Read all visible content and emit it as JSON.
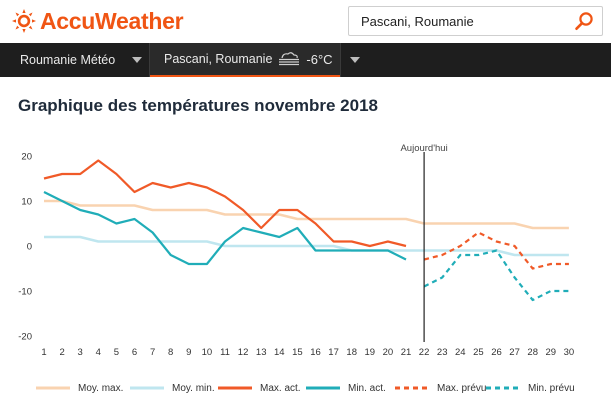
{
  "header": {
    "logo_text": "AccuWeather",
    "search": {
      "value": "Pascani, Roumanie",
      "placeholder": ""
    }
  },
  "nav": {
    "items": [
      {
        "label": "Roumanie Météo"
      },
      {
        "label": "Pascani, Roumanie",
        "temp": "-6°C",
        "icon": "fog-icon"
      }
    ]
  },
  "page": {
    "title": "Graphique des températures novembre 2018"
  },
  "colors": {
    "brand": "#f05514",
    "moy_max": "#f9d3b0",
    "moy_min": "#bfe6ef",
    "max_act": "#f05a28",
    "min_act": "#20adb8",
    "max_prevu": "#f05a28",
    "min_prevu": "#20adb8"
  },
  "chart_data": {
    "type": "line",
    "title": "Graphique des températures novembre 2018",
    "x": [
      1,
      2,
      3,
      4,
      5,
      6,
      7,
      8,
      9,
      10,
      11,
      12,
      13,
      14,
      15,
      16,
      17,
      18,
      19,
      20,
      21,
      22,
      23,
      24,
      25,
      26,
      27,
      28,
      29,
      30
    ],
    "ylim": [
      -20,
      20
    ],
    "yticks": [
      20,
      10,
      0,
      -10,
      -20
    ],
    "today_x": 22,
    "today_label": "Aujourd'hui",
    "grid": false,
    "legend_position": "bottom",
    "series": [
      {
        "name": "Moy. max.",
        "style": "solid",
        "color_key": "moy_max",
        "x": [
          1,
          2,
          3,
          4,
          5,
          6,
          7,
          8,
          9,
          10,
          11,
          12,
          13,
          14,
          15,
          16,
          17,
          18,
          19,
          20,
          21,
          22,
          23,
          24,
          25,
          26,
          27,
          28,
          29,
          30
        ],
        "values": [
          10,
          10,
          9,
          9,
          9,
          9,
          8,
          8,
          8,
          8,
          7,
          7,
          7,
          7,
          6,
          6,
          6,
          6,
          6,
          6,
          6,
          5,
          5,
          5,
          5,
          5,
          5,
          4,
          4,
          4
        ]
      },
      {
        "name": "Moy. min.",
        "style": "solid",
        "color_key": "moy_min",
        "x": [
          1,
          2,
          3,
          4,
          5,
          6,
          7,
          8,
          9,
          10,
          11,
          12,
          13,
          14,
          15,
          16,
          17,
          18,
          19,
          20,
          21,
          22,
          23,
          24,
          25,
          26,
          27,
          28,
          29,
          30
        ],
        "values": [
          2,
          2,
          2,
          1,
          1,
          1,
          1,
          1,
          1,
          1,
          0,
          0,
          0,
          0,
          0,
          0,
          0,
          -1,
          -1,
          -1,
          -1,
          -1,
          -1,
          -1,
          -1,
          -1,
          -2,
          -2,
          -2,
          -2
        ]
      },
      {
        "name": "Max. act.",
        "style": "solid",
        "color_key": "max_act",
        "x": [
          1,
          2,
          3,
          4,
          5,
          6,
          7,
          8,
          9,
          10,
          11,
          12,
          13,
          14,
          15,
          16,
          17,
          18,
          19,
          20,
          21
        ],
        "values": [
          15,
          16,
          16,
          19,
          16,
          12,
          14,
          13,
          14,
          13,
          11,
          8,
          4,
          8,
          8,
          5,
          1,
          1,
          0,
          1,
          0
        ]
      },
      {
        "name": "Min. act.",
        "style": "solid",
        "color_key": "min_act",
        "x": [
          1,
          2,
          3,
          4,
          5,
          6,
          7,
          8,
          9,
          10,
          11,
          12,
          13,
          14,
          15,
          16,
          17,
          18,
          19,
          20,
          21
        ],
        "values": [
          12,
          10,
          8,
          7,
          5,
          6,
          3,
          -2,
          -4,
          -4,
          1,
          4,
          3,
          2,
          4,
          -1,
          -1,
          -1,
          -1,
          -1,
          -3
        ]
      },
      {
        "name": "Max. prévu",
        "style": "dashed",
        "color_key": "max_prevu",
        "x": [
          22,
          23,
          24,
          25,
          26,
          27,
          28,
          29,
          30
        ],
        "values": [
          -3,
          -2,
          0,
          3,
          1,
          0,
          -5,
          -4,
          -4
        ]
      },
      {
        "name": "Min. prévu",
        "style": "dashed",
        "color_key": "min_prevu",
        "x": [
          22,
          23,
          24,
          25,
          26,
          27,
          28,
          29,
          30
        ],
        "values": [
          -9,
          -7,
          -2,
          -2,
          -1,
          -7,
          -12,
          -10,
          -10
        ]
      }
    ]
  }
}
